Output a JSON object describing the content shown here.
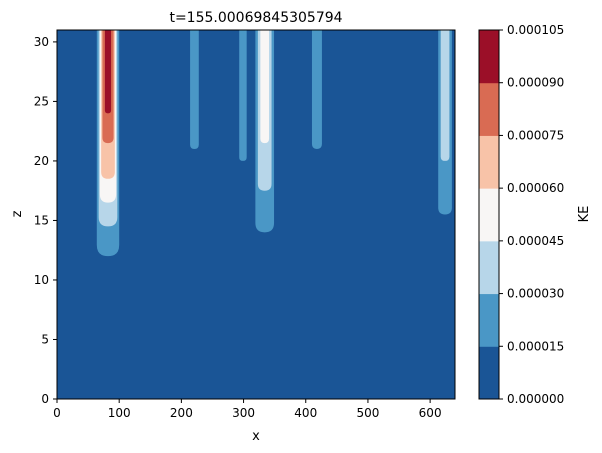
{
  "chart_data": {
    "type": "heatmap",
    "title": "t=155.00069845305794",
    "xlabel": "x",
    "ylabel": "z",
    "colorbar_label": "KE",
    "xlim": [
      0,
      640
    ],
    "ylim": [
      0,
      31
    ],
    "xticks": [
      0,
      100,
      200,
      300,
      400,
      500,
      600
    ],
    "yticks": [
      0,
      5,
      10,
      15,
      20,
      25,
      30
    ],
    "levels": [
      0,
      1.5e-05,
      3e-05,
      4.5e-05,
      6e-05,
      7.5e-05,
      9e-05,
      0.000105
    ],
    "level_labels": [
      "0.000000",
      "0.000015",
      "0.000030",
      "0.000045",
      "0.000060",
      "0.000075",
      "0.000090",
      "0.000105"
    ],
    "level_colors": [
      "#1a5596",
      "#4a97c6",
      "#b7d6e9",
      "#f8f6f5",
      "#f8c3a8",
      "#d96b53",
      "#9b0f28"
    ],
    "background_level_color": "#1a5596",
    "plumes": [
      {
        "x_center": 82,
        "top_width": 36,
        "bands": [
          {
            "level": 1,
            "z_bottom": 12.0,
            "half_width": 18
          },
          {
            "level": 2,
            "z_bottom": 14.5,
            "half_width": 15
          },
          {
            "level": 3,
            "z_bottom": 16.5,
            "half_width": 13
          },
          {
            "level": 4,
            "z_bottom": 18.5,
            "half_width": 11
          },
          {
            "level": 5,
            "z_bottom": 21.5,
            "half_width": 9
          },
          {
            "level": 6,
            "z_bottom": 24.0,
            "half_width": 5
          }
        ]
      },
      {
        "x_center": 221,
        "top_width": 14,
        "bands": [
          {
            "level": 1,
            "z_bottom": 21.0,
            "half_width": 7
          }
        ]
      },
      {
        "x_center": 299,
        "top_width": 12,
        "bands": [
          {
            "level": 1,
            "z_bottom": 20.0,
            "half_width": 6
          }
        ]
      },
      {
        "x_center": 334,
        "top_width": 30,
        "bands": [
          {
            "level": 1,
            "z_bottom": 14.0,
            "half_width": 15
          },
          {
            "level": 2,
            "z_bottom": 17.5,
            "half_width": 11
          },
          {
            "level": 3,
            "z_bottom": 21.5,
            "half_width": 7
          }
        ]
      },
      {
        "x_center": 418,
        "top_width": 16,
        "bands": [
          {
            "level": 1,
            "z_bottom": 21.0,
            "half_width": 8
          }
        ]
      },
      {
        "x_center": 624,
        "top_width": 22,
        "bands": [
          {
            "level": 1,
            "z_bottom": 15.5,
            "half_width": 11
          },
          {
            "level": 2,
            "z_bottom": 20.0,
            "half_width": 7
          }
        ]
      }
    ]
  }
}
